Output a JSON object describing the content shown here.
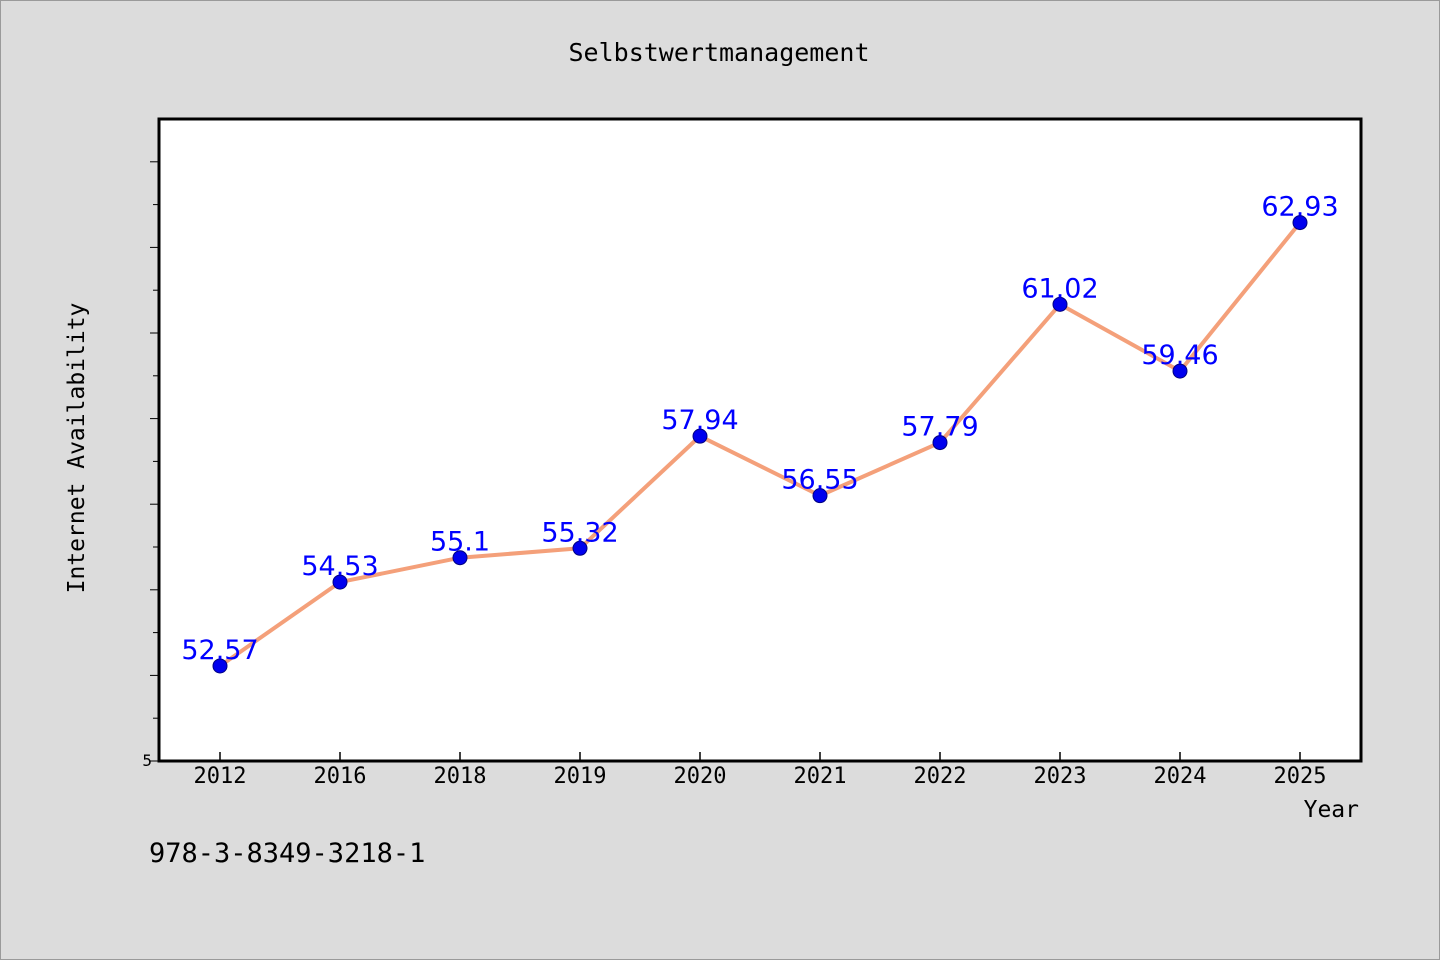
{
  "chart_data": {
    "type": "line",
    "title": "Selbstwertmanagement",
    "xlabel": "Year",
    "ylabel": "Internet Availability",
    "categories": [
      "2012",
      "2016",
      "2018",
      "2019",
      "2020",
      "2021",
      "2022",
      "2023",
      "2024",
      "2025"
    ],
    "series": [
      {
        "values": [
          52.57,
          54.53,
          55.1,
          55.32,
          57.94,
          56.55,
          57.79,
          61.02,
          59.46,
          62.93
        ]
      }
    ],
    "data_labels": [
      "52.57",
      "54.53",
      "55.1",
      "55.32",
      "57.94",
      "56.55",
      "57.79",
      "61.02",
      "59.46",
      "62.93"
    ],
    "ylim": [
      50.35,
      65.35
    ],
    "y_tick_label": "5",
    "grid": false,
    "colors": {
      "line": "#f4a07a",
      "marker": "#0000ee",
      "marker_edge": "#000080",
      "data_label": "#0000ff",
      "plot_background": "#ffffff",
      "figure_background": "#dcdcdc",
      "text": "#000000"
    }
  },
  "footer": {
    "isbn": "978-3-8349-3218-1"
  }
}
